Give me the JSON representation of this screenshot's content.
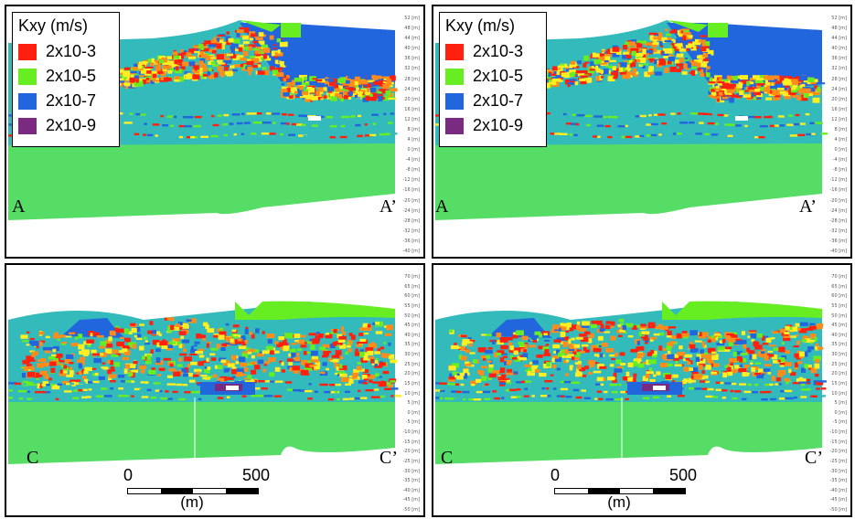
{
  "legend": {
    "title": "Kxy (m/s)",
    "items": [
      {
        "label": "2x10-3",
        "color": "#ff2010"
      },
      {
        "label": "2x10-5",
        "color": "#66ee22"
      },
      {
        "label": "2x10-7",
        "color": "#2266dd"
      },
      {
        "label": "2x10-9",
        "color": "#7a2a80"
      }
    ]
  },
  "panels": [
    {
      "id": "top-left",
      "left_label": "A",
      "right_label": "A’",
      "scale_ticks": [
        "52 [m]",
        "48 [m]",
        "44 [m]",
        "40 [m]",
        "36 [m]",
        "32 [m]",
        "28 [m]",
        "24 [m]",
        "20 [m]",
        "16 [m]",
        "12 [m]",
        "8 [m]",
        "4 [m]",
        "0 [m]",
        "-4 [m]",
        "-8 [m]",
        "-12 [m]",
        "-16 [m]",
        "-20 [m]",
        "-24 [m]",
        "-28 [m]",
        "-32 [m]",
        "-36 [m]",
        "-40 [m]"
      ]
    },
    {
      "id": "top-right",
      "left_label": "A",
      "right_label": "A’",
      "scale_ticks": [
        "52 [m]",
        "48 [m]",
        "44 [m]",
        "40 [m]",
        "36 [m]",
        "32 [m]",
        "28 [m]",
        "24 [m]",
        "20 [m]",
        "16 [m]",
        "12 [m]",
        "8 [m]",
        "4 [m]",
        "0 [m]",
        "-4 [m]",
        "-8 [m]",
        "-12 [m]",
        "-16 [m]",
        "-20 [m]",
        "-24 [m]",
        "-28 [m]",
        "-32 [m]",
        "-36 [m]",
        "-40 [m]"
      ]
    },
    {
      "id": "bottom-left",
      "left_label": "C",
      "right_label": "C’",
      "scale_ticks": [
        "70 [m]",
        "65 [m]",
        "60 [m]",
        "55 [m]",
        "50 [m]",
        "45 [m]",
        "40 [m]",
        "35 [m]",
        "30 [m]",
        "25 [m]",
        "20 [m]",
        "15 [m]",
        "10 [m]",
        "5 [m]",
        "0 [m]",
        "-5 [m]",
        "-10 [m]",
        "-15 [m]",
        "-20 [m]",
        "-25 [m]",
        "-30 [m]",
        "-35 [m]",
        "-40 [m]",
        "-45 [m]",
        "-50 [m]"
      ]
    },
    {
      "id": "bottom-right",
      "left_label": "C",
      "right_label": "C’",
      "scale_ticks": [
        "70 [m]",
        "65 [m]",
        "60 [m]",
        "55 [m]",
        "50 [m]",
        "45 [m]",
        "40 [m]",
        "35 [m]",
        "30 [m]",
        "25 [m]",
        "20 [m]",
        "15 [m]",
        "10 [m]",
        "5 [m]",
        "0 [m]",
        "-5 [m]",
        "-10 [m]",
        "-15 [m]",
        "-20 [m]",
        "-25 [m]",
        "-30 [m]",
        "-35 [m]",
        "-40 [m]",
        "-45 [m]",
        "-50 [m]"
      ]
    }
  ],
  "scalebar": {
    "start": "0",
    "end": "500",
    "unit": "(m)"
  },
  "colors": {
    "base": "#55dd66",
    "teal": "#33bbbb",
    "blue": "#2266dd",
    "red": "#ff2010",
    "orange": "#ff8c1a",
    "yellow": "#ffee22",
    "green": "#66ee22",
    "purple": "#7a2a80"
  }
}
